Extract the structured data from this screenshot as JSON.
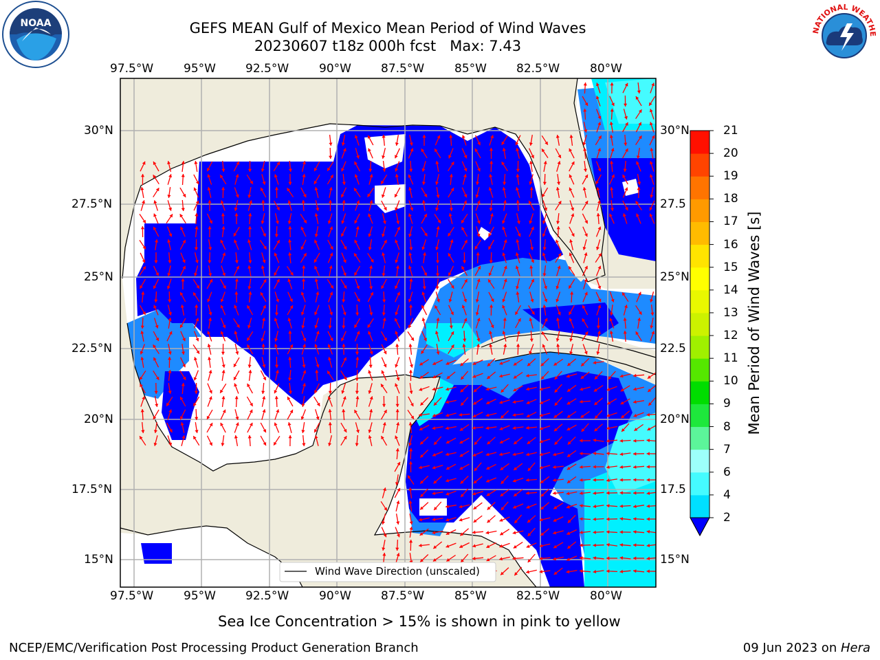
{
  "title_line1": "GEFS MEAN Gulf of Mexico Mean Period of Wind Waves",
  "title_line2": "20230607 t18z 000h fcst   Max: 7.43",
  "logo_left_text": "NOAA",
  "logo_right_ring_text": "NATIONAL WEATHER SERVICE",
  "lon_labels": [
    "97.5°W",
    "95°W",
    "92.5°W",
    "90°W",
    "87.5°W",
    "85°W",
    "82.5°W",
    "80°W"
  ],
  "lat_labels": [
    "30°N",
    "27.5°N",
    "25°N",
    "22.5°N",
    "20°N",
    "17.5°N",
    "15°N"
  ],
  "lat_labels_right": [
    "30°N",
    "27.5",
    "25°N",
    "22.5",
    "20°N",
    "17.5",
    "15°N"
  ],
  "legend_label": "Wind Wave Direction (unscaled)",
  "colorbar": {
    "label": "Mean Period of Wind Waves [s]",
    "ticks": [
      "2",
      "4",
      "6",
      "7",
      "8",
      "9",
      "10",
      "11",
      "12",
      "13",
      "14",
      "15",
      "16",
      "17",
      "18",
      "19",
      "20",
      "21"
    ],
    "colors": [
      "#0d6efd",
      "#00e0ff",
      "#45fbff",
      "#9dfffb",
      "#5cf59a",
      "#1ee83c",
      "#00dd00",
      "#55e800",
      "#a0f000",
      "#ccf200",
      "#e9f800",
      "#ffff00",
      "#ffe400",
      "#ffbb00",
      "#ff9a00",
      "#ff7400",
      "#ff4400",
      "#ff1000"
    ],
    "extend_color": "#0000ff"
  },
  "notice": "Sea Ice Concentration > 15% is shown in pink to yellow",
  "footer_left": "NCEP/EMC/Verification Post Processing Product Generation Branch",
  "footer_date": "09 Jun 2023 on ",
  "footer_machine": "Hera",
  "colors": {
    "land": "#efecdc",
    "ocean_low": "#0000ff",
    "ocean_mid": "#1e8bff",
    "ocean_cyan": "#00f0ff",
    "arrows": "#ff0000",
    "grid": "#b0b0b0"
  }
}
